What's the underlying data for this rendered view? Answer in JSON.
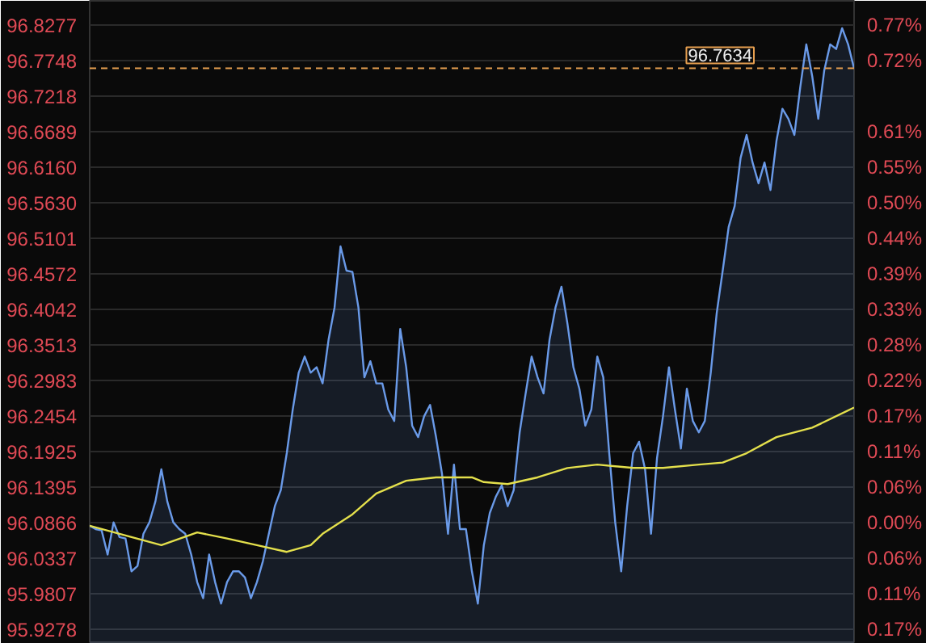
{
  "chart_data": {
    "type": "area",
    "categories": [
      null,
      null,
      null,
      null,
      null,
      null,
      null,
      null,
      null,
      null,
      null,
      null,
      null,
      null,
      null,
      null,
      null,
      null,
      null,
      null,
      null,
      null,
      null,
      null,
      null,
      null,
      null,
      null,
      null,
      null,
      null,
      null,
      null,
      null,
      null,
      null,
      null,
      null,
      null,
      null,
      null,
      null,
      null,
      null,
      null,
      null,
      null,
      null,
      null,
      null,
      null,
      null,
      null,
      null,
      null,
      null,
      null,
      null,
      null,
      null,
      null,
      null,
      null,
      null,
      null,
      null,
      null,
      null,
      null,
      null,
      null,
      null,
      null,
      null,
      null,
      null,
      null,
      null,
      null,
      null,
      null,
      null,
      null,
      null,
      null,
      null,
      null,
      null,
      null,
      null,
      null,
      null,
      null,
      null,
      null,
      null,
      null,
      null,
      null,
      null,
      null,
      null,
      null,
      null,
      null,
      null,
      null,
      null,
      null,
      null,
      null,
      null,
      null,
      null,
      null,
      null,
      null,
      null,
      null,
      null,
      null,
      null,
      null,
      null,
      null,
      null,
      null,
      null,
      null
    ],
    "series": [
      {
        "type": "area",
        "color": "#6a9ae8",
        "values": [
          96.082,
          96.077,
          96.075,
          96.039,
          96.087,
          96.065,
          96.063,
          96.014,
          96.022,
          96.07,
          96.087,
          96.118,
          96.166,
          96.118,
          96.087,
          96.077,
          96.07,
          96.039,
          95.998,
          95.974,
          96.039,
          95.998,
          95.966,
          95.998,
          96.014,
          96.014,
          96.005,
          95.974,
          95.998,
          96.029,
          96.07,
          96.111,
          96.135,
          96.19,
          96.255,
          96.31,
          96.334,
          96.31,
          96.318,
          96.294,
          96.359,
          96.407,
          96.498,
          96.462,
          96.46,
          96.407,
          96.303,
          96.327,
          96.294,
          96.294,
          96.255,
          96.238,
          96.375,
          96.318,
          96.231,
          96.214,
          96.245,
          96.262,
          96.214,
          96.159,
          96.07,
          96.173,
          96.077,
          96.077,
          96.014,
          95.966,
          96.053,
          96.101,
          96.125,
          96.142,
          96.111,
          96.135,
          96.221,
          96.279,
          96.334,
          96.303,
          96.279,
          96.359,
          96.407,
          96.438,
          96.383,
          96.318,
          96.286,
          96.231,
          96.255,
          96.334,
          96.303,
          96.19,
          96.087,
          96.014,
          96.111,
          96.19,
          96.207,
          96.166,
          96.07,
          96.183,
          96.245,
          96.318,
          96.255,
          96.197,
          96.286,
          96.238,
          96.221,
          96.238,
          96.31,
          96.399,
          96.462,
          96.527,
          96.558,
          96.63,
          96.664,
          96.623,
          96.592,
          96.623,
          96.582,
          96.655,
          96.703,
          96.688,
          96.664,
          96.736,
          96.799,
          96.751,
          96.688,
          96.76,
          96.799,
          96.792,
          96.823,
          96.799,
          96.763
        ]
      },
      {
        "type": "line",
        "color": "#e4e04c",
        "values": [
          96.082,
          null,
          null,
          null,
          null,
          null,
          null,
          96.065,
          null,
          null,
          null,
          null,
          96.053,
          null,
          null,
          null,
          null,
          null,
          96.072,
          null,
          null,
          null,
          null,
          96.063,
          null,
          null,
          null,
          null,
          96.053,
          null,
          null,
          null,
          null,
          96.043,
          null,
          null,
          null,
          96.053,
          null,
          96.07,
          null,
          null,
          null,
          null,
          96.099,
          null,
          null,
          null,
          96.13,
          null,
          null,
          null,
          null,
          96.149,
          null,
          null,
          null,
          null,
          96.154,
          null,
          null,
          null,
          null,
          null,
          96.154,
          null,
          96.147,
          null,
          null,
          null,
          96.144,
          null,
          null,
          null,
          null,
          96.154,
          null,
          null,
          null,
          null,
          96.168,
          null,
          null,
          null,
          null,
          96.173,
          null,
          null,
          null,
          null,
          null,
          96.168,
          null,
          null,
          null,
          null,
          96.168,
          null,
          null,
          null,
          null,
          null,
          96.173,
          null,
          null,
          null,
          96.176,
          null,
          null,
          null,
          96.19,
          null,
          null,
          null,
          null,
          96.214,
          null,
          null,
          null,
          null,
          null,
          96.228,
          null,
          null,
          null,
          null,
          null,
          null,
          96.258
        ]
      }
    ],
    "ylim": [
      95.9061,
      96.8638
    ],
    "yticks": [
      96.8277,
      96.7748,
      96.7218,
      96.6689,
      {
        "value": 96.616,
        "label": "96.6160"
      },
      {
        "value": 96.563,
        "label": "96.5630"
      },
      96.5101,
      96.4572,
      96.4042,
      96.3513,
      96.2983,
      96.2454,
      96.1925,
      96.1395,
      96.0866,
      96.0337,
      95.9807,
      95.9278
    ],
    "y2lim": [
      -0.1878,
      0.8088
    ],
    "y2ticks": [
      {
        "value": 0.7713,
        "label": "0.77%"
      },
      {
        "value": 0.7162,
        "label": "0.72%"
      },
      {
        "value": 0.6611,
        "label": null
      },
      {
        "value": 0.606,
        "label": "0.61%"
      },
      {
        "value": 0.5509,
        "label": "0.55%"
      },
      {
        "value": 0.4958,
        "label": "0.50%"
      },
      {
        "value": 0.4407,
        "label": "0.44%"
      },
      {
        "value": 0.3856,
        "label": "0.39%"
      },
      {
        "value": 0.3305,
        "label": "0.33%"
      },
      {
        "value": 0.2754,
        "label": "0.28%"
      },
      {
        "value": 0.2204,
        "label": "0.22%"
      },
      {
        "value": 0.1653,
        "label": "0.17%"
      },
      {
        "value": 0.1102,
        "label": "0.11%"
      },
      {
        "value": 0.0551,
        "label": "0.06%"
      },
      {
        "value": 0,
        "label": "0.00%"
      },
      {
        "value": -0.0551,
        "label": "0.06%"
      },
      {
        "value": -0.1102,
        "label": "0.11%"
      },
      {
        "value": -0.1653,
        "label": "0.17%"
      }
    ],
    "ref_lines": [
      {
        "axis": "y",
        "value": 96.7634,
        "label": "96.7634",
        "color": "#e8a050",
        "line_style": "dashed"
      }
    ],
    "grid": "y",
    "tick_labels": "y"
  }
}
